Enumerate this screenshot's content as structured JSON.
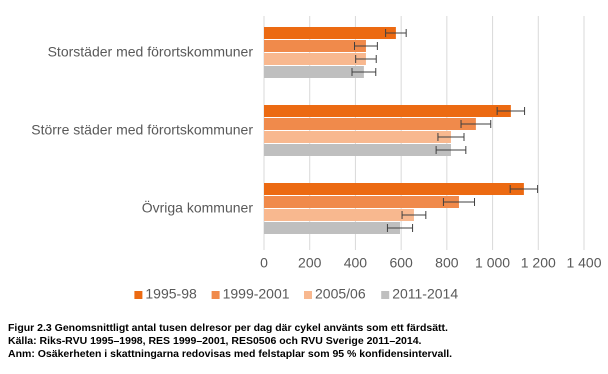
{
  "chart_data": {
    "type": "bar",
    "orientation": "horizontal",
    "categories": [
      "Storstäder med förortskommuner",
      "Större städer med förortskommuner",
      "Övriga kommuner"
    ],
    "series": [
      {
        "name": "1995-98",
        "color": "#ec6a12",
        "values": [
          577,
          1080,
          1137
        ],
        "errors": [
          45,
          60,
          60
        ]
      },
      {
        "name": "1999-2001",
        "color": "#f08a4b",
        "values": [
          446,
          927,
          853
        ],
        "errors": [
          50,
          65,
          68
        ]
      },
      {
        "name": "2005/06",
        "color": "#f8b88f",
        "values": [
          446,
          818,
          656
        ],
        "errors": [
          45,
          57,
          52
        ]
      },
      {
        "name": "2011-2014",
        "color": "#bfbfbf",
        "values": [
          437,
          818,
          595
        ],
        "errors": [
          52,
          65,
          55
        ]
      }
    ],
    "xlim": [
      0,
      1400
    ],
    "xticks": [
      0,
      200,
      400,
      600,
      800,
      {
        "value": 1000,
        "label": "1 000"
      },
      {
        "value": 1200,
        "label": "1 200"
      },
      {
        "value": 1400,
        "label": "1 400"
      }
    ],
    "grid": true,
    "legend": "bottom",
    "notes": [
      "Figur 2.3 Genomsnittligt antal tusen delresor per dag där cykel använts som ett färdsätt.",
      "Källa: Riks-RVU 1995–1998, RES 1999–2001, RES0506 och RVU Sverige 2011–2014.",
      "Anm: Osäkerheten i skattningarna redovisas med felstaplar som 95 % konfidensintervall."
    ]
  }
}
